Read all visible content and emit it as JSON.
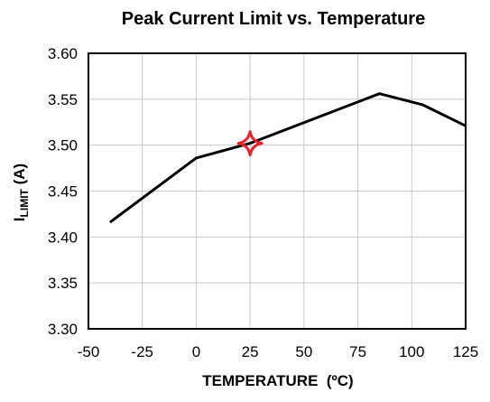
{
  "chart_data": {
    "type": "line",
    "title": "Peak Current Limit vs. Temperature",
    "xlabel": "TEMPERATURE  (ºC)",
    "ylabel": {
      "main": "I",
      "sub": "LIMIT",
      "unit": " (A)"
    },
    "xlim": [
      -50,
      125
    ],
    "ylim": [
      3.3,
      3.6
    ],
    "xticks": [
      -50,
      -25,
      0,
      25,
      50,
      75,
      100,
      125
    ],
    "yticks": [
      3.3,
      3.35,
      3.4,
      3.45,
      3.5,
      3.55,
      3.6
    ],
    "xtick_labels": [
      "-50",
      "-25",
      "0",
      "25",
      "50",
      "75",
      "100",
      "125"
    ],
    "ytick_labels": [
      "3.30",
      "3.35",
      "3.40",
      "3.45",
      "3.50",
      "3.55",
      "3.60"
    ],
    "grid": true,
    "series": [
      {
        "x": [
          -40,
          0,
          25,
          85,
          105,
          125
        ],
        "y": [
          3.416,
          3.486,
          3.502,
          3.556,
          3.544,
          3.521
        ],
        "color": "#000000"
      }
    ],
    "marker": {
      "x": 25,
      "y": 3.502,
      "shape": "four-point-star",
      "color": "#e8202a"
    }
  }
}
